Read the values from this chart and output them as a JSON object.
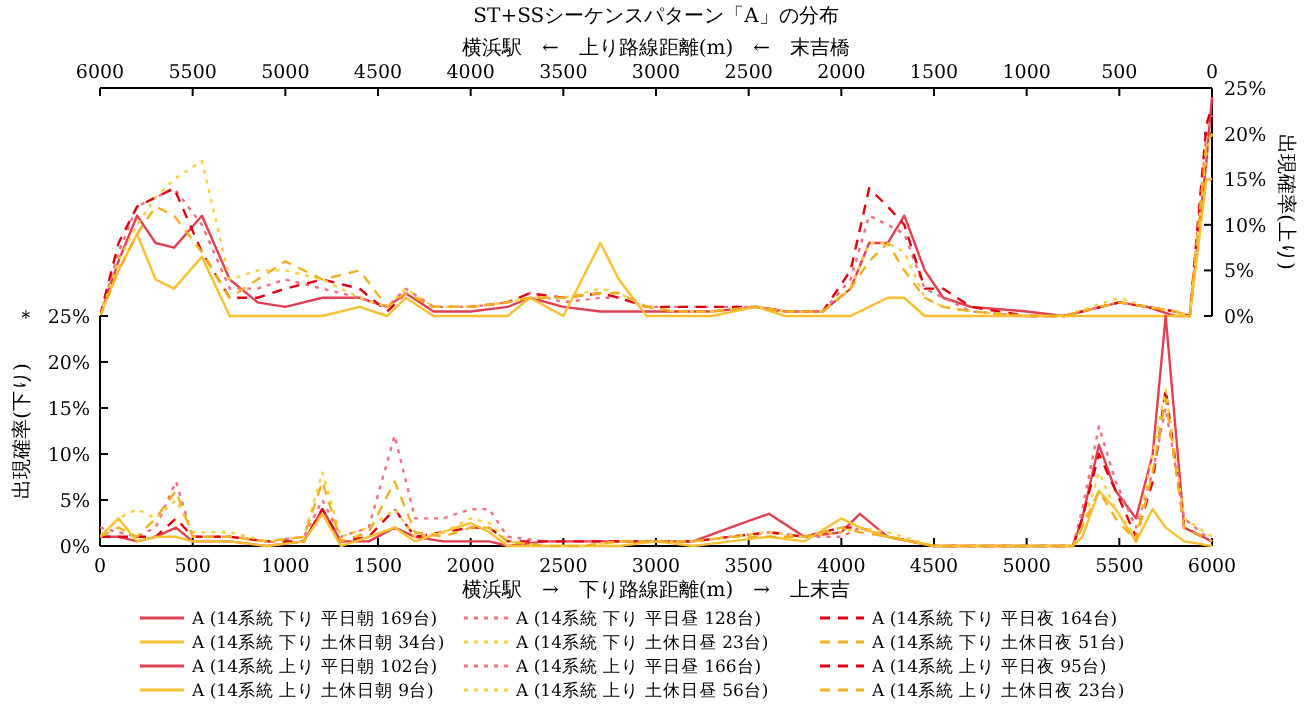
{
  "chart_data": [
    {
      "type": "line",
      "title": "ST+SSシーケンスパターン「A」の分布",
      "xlabel": "横浜駅　←　上り路線距離(m)　←　末吉橋",
      "ylabel": "出現確率(上り)",
      "xlim": [
        6000,
        0
      ],
      "xticks": [
        6000,
        5500,
        5000,
        4500,
        4000,
        3500,
        3000,
        2500,
        2000,
        1500,
        1000,
        500,
        0
      ],
      "ylim": [
        0,
        25
      ],
      "yticks": [
        {
          "value": 0,
          "label": "0%"
        },
        {
          "value": 5,
          "label": "5%"
        },
        {
          "value": 10,
          "label": "10%"
        },
        {
          "value": 15,
          "label": "15%"
        },
        {
          "value": 20,
          "label": "20%"
        },
        {
          "value": 25,
          "label": "25%"
        }
      ],
      "legend": "bottom",
      "grid": false,
      "x": [
        6000,
        5900,
        5800,
        5700,
        5600,
        5450,
        5300,
        5150,
        5000,
        4800,
        4600,
        4450,
        4350,
        4200,
        4000,
        3800,
        3680,
        3500,
        3300,
        3200,
        3050,
        2900,
        2700,
        2460,
        2300,
        2100,
        1950,
        1850,
        1750,
        1660,
        1550,
        1450,
        1300,
        1000,
        800,
        500,
        350,
        200,
        120,
        30,
        0
      ],
      "series": [
        {
          "name": "A (14系統 上り 平日朝 102台)",
          "color": "#e04050",
          "line_style": "solid",
          "values": [
            0,
            6,
            11,
            8,
            7.5,
            11,
            4,
            1.5,
            1,
            2,
            2,
            1,
            2.5,
            0.5,
            0.5,
            1,
            2,
            1,
            0.5,
            0.5,
            0.5,
            0.5,
            0.5,
            1,
            0.5,
            0.5,
            3,
            8,
            8,
            11,
            5,
            2,
            1,
            0.5,
            0,
            1.5,
            1,
            0,
            0,
            17,
            24
          ]
        },
        {
          "name": "A (14系統 上り 平日昼 166台)",
          "color": "#f07080",
          "line_style": "dotted",
          "values": [
            0,
            7,
            12,
            13,
            14,
            10,
            3,
            3,
            4,
            3,
            2,
            1,
            3,
            1,
            1,
            1.5,
            2.5,
            1.5,
            2,
            2,
            1,
            1,
            1,
            1,
            0.5,
            0.5,
            4,
            11,
            10,
            9,
            3,
            2,
            0.5,
            0,
            0,
            1.5,
            1,
            0.5,
            0,
            20,
            22
          ]
        },
        {
          "name": "A (14系統 上り 平日夜 95台)",
          "color": "#e00010",
          "line_style": "dashed",
          "values": [
            0,
            8,
            12,
            13,
            14,
            7,
            2,
            2,
            3,
            4,
            3,
            0.5,
            2.5,
            1,
            1,
            1.5,
            2.5,
            2,
            2.5,
            2,
            1,
            1,
            1,
            1,
            0.5,
            0.5,
            5,
            14,
            12,
            10,
            3,
            3,
            1,
            0,
            0,
            1.5,
            1,
            0.5,
            0,
            21,
            23
          ]
        },
        {
          "name": "A (14系統 上り 土休日朝 9台)",
          "color": "#f8c030",
          "line_style": "solid",
          "values": [
            0,
            5,
            9,
            4,
            3,
            6.5,
            0,
            0,
            0,
            0,
            1,
            0,
            2,
            0,
            0,
            0,
            2,
            0,
            8,
            4,
            0,
            0,
            0,
            1,
            0,
            0,
            0,
            1,
            2,
            2,
            0,
            0,
            0,
            0,
            0,
            0,
            0,
            0,
            0,
            15,
            15
          ]
        },
        {
          "name": "A (14系統 上り 土休日昼 56台)",
          "color": "#f8d040",
          "line_style": "dotted",
          "values": [
            0,
            6,
            10,
            13,
            15,
            17,
            4,
            5,
            5,
            4,
            2,
            1,
            3,
            1,
            1,
            1.5,
            2,
            2,
            3,
            2.5,
            1,
            0.5,
            0.5,
            1,
            0.5,
            0.5,
            3,
            8,
            8,
            7,
            2,
            1,
            0.5,
            0,
            0,
            2,
            1,
            0.5,
            0,
            18,
            20
          ]
        },
        {
          "name": "A (14系統 上り 土休日夜 23台)",
          "color": "#f0b020",
          "line_style": "dashed",
          "values": [
            0,
            5,
            9,
            12,
            11,
            7,
            2,
            4,
            6,
            4,
            5,
            1,
            2.5,
            1,
            1,
            1.5,
            2,
            2,
            2.5,
            2.5,
            1,
            0.5,
            0.5,
            1,
            0.5,
            0.5,
            3,
            6,
            8,
            5,
            2,
            1,
            0.5,
            0,
            0,
            1.5,
            1,
            0.5,
            0,
            19,
            20
          ]
        }
      ]
    },
    {
      "type": "line",
      "xlabel": "横浜駅　→　下り路線距離(m)　→　上末吉",
      "ylabel": "出現確率(下り)",
      "annotations": [
        "＊"
      ],
      "xlim": [
        0,
        6000
      ],
      "xticks": [
        0,
        500,
        1000,
        1500,
        2000,
        2500,
        3000,
        3500,
        4000,
        4500,
        5000,
        5500,
        6000
      ],
      "ylim": [
        0,
        25
      ],
      "yticks": [
        {
          "value": 0,
          "label": "0%"
        },
        {
          "value": 5,
          "label": "5%"
        },
        {
          "value": 10,
          "label": "10%"
        },
        {
          "value": 15,
          "label": "15%"
        },
        {
          "value": 20,
          "label": "20%"
        },
        {
          "value": 25,
          "label": "25%"
        }
      ],
      "legend": "bottom",
      "grid": false,
      "x": [
        0,
        100,
        200,
        300,
        410,
        500,
        700,
        900,
        1100,
        1200,
        1300,
        1450,
        1590,
        1700,
        1850,
        2000,
        2100,
        2200,
        2400,
        2600,
        2800,
        3000,
        3200,
        3400,
        3610,
        3800,
        4000,
        4100,
        4250,
        4500,
        4800,
        5250,
        5300,
        5390,
        5480,
        5590,
        5680,
        5750,
        5850,
        6000
      ],
      "series": [
        {
          "name": "A (14系統 下り 平日朝 169台)",
          "color": "#e04050",
          "line_style": "solid",
          "values": [
            1,
            1,
            0.5,
            1,
            2,
            0.5,
            0.5,
            0,
            0.5,
            4,
            0.5,
            0.5,
            2,
            1,
            0.5,
            0.5,
            0.5,
            0,
            0.5,
            0.5,
            0.5,
            0.5,
            0.5,
            2,
            3.5,
            1,
            1.5,
            3.5,
            1,
            0,
            0,
            0,
            3,
            11,
            6,
            3,
            10,
            25,
            2,
            0.5
          ]
        },
        {
          "name": "A (14系統 下り 平日昼 128台)",
          "color": "#f07080",
          "line_style": "dotted",
          "values": [
            2,
            1.5,
            1,
            2,
            7,
            1,
            1,
            0.5,
            1,
            5,
            1,
            2,
            12,
            3,
            3,
            4,
            4,
            1,
            0.5,
            0.5,
            0.5,
            0.5,
            0.5,
            1,
            1.5,
            1,
            1,
            2,
            1,
            0,
            0,
            0,
            4,
            13,
            7,
            2,
            8,
            15,
            3,
            0.5
          ]
        },
        {
          "name": "A (14系統 下り 平日夜 164台)",
          "color": "#e00010",
          "line_style": "dashed",
          "values": [
            1,
            1,
            1,
            1,
            3,
            1,
            1,
            0.5,
            0.5,
            4,
            0.5,
            1,
            4,
            1,
            1.5,
            2,
            2,
            0.5,
            0.5,
            0.5,
            0.5,
            0.5,
            0.5,
            1,
            1.5,
            1,
            2,
            2,
            1,
            0,
            0,
            0,
            3,
            10,
            6,
            1,
            7,
            17,
            2,
            0.5
          ]
        },
        {
          "name": "A (14系統 下り 土休日朝 34台)",
          "color": "#f8c030",
          "line_style": "solid",
          "values": [
            1,
            3,
            0.5,
            1,
            1,
            0.5,
            0.5,
            0,
            0.5,
            3.5,
            0,
            1,
            2,
            0.5,
            1.5,
            2.5,
            1.5,
            0,
            0,
            0,
            0,
            0.5,
            0,
            0.5,
            1,
            0.5,
            3,
            2,
            1,
            0,
            0,
            0,
            1,
            6,
            4,
            0.5,
            4,
            2,
            0.5,
            0
          ]
        },
        {
          "name": "A (14系統 下り 土休日昼 23台)",
          "color": "#f8d040",
          "line_style": "dotted",
          "values": [
            1,
            3,
            4,
            3,
            5,
            1.5,
            1.5,
            0.5,
            1,
            8,
            1,
            2,
            4,
            1,
            1.5,
            3,
            2.5,
            0.5,
            0,
            0,
            0.5,
            0.5,
            0.5,
            1,
            1.5,
            1,
            1.5,
            2,
            1.5,
            0,
            0,
            0,
            2,
            8,
            4,
            1,
            10,
            17,
            3,
            1
          ]
        },
        {
          "name": "A (14系統 下り 土休日夜 51台)",
          "color": "#f0b020",
          "line_style": "dashed",
          "values": [
            1,
            2,
            1,
            3,
            6,
            1,
            1,
            0.5,
            1,
            7,
            0.5,
            1.5,
            7,
            1.5,
            1,
            2,
            2,
            0.5,
            0,
            0,
            0.5,
            0.5,
            0.5,
            1,
            1,
            1,
            2,
            1.5,
            1,
            0,
            0,
            0,
            2,
            6,
            3,
            0.5,
            8,
            16,
            2,
            0.5
          ]
        }
      ]
    }
  ]
}
